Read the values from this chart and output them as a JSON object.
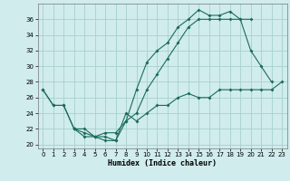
{
  "xlabel": "Humidex (Indice chaleur)",
  "bg_color": "#d0ecec",
  "grid_color": "#a8d0d0",
  "line_color": "#1a6b5a",
  "xlim": [
    -0.5,
    23.5
  ],
  "ylim": [
    19.5,
    38
  ],
  "xticks": [
    0,
    1,
    2,
    3,
    4,
    5,
    6,
    7,
    8,
    9,
    10,
    11,
    12,
    13,
    14,
    15,
    16,
    17,
    18,
    19,
    20,
    21,
    22,
    23
  ],
  "yticks": [
    20,
    22,
    24,
    26,
    28,
    30,
    32,
    34,
    36
  ],
  "line1_x": [
    0,
    1,
    2,
    3,
    4,
    5,
    6,
    7,
    8,
    9,
    10,
    11,
    12,
    13,
    14,
    15,
    16,
    17,
    18,
    19,
    20,
    21,
    22
  ],
  "line1_y": [
    27,
    25,
    25,
    22,
    21,
    21,
    20.5,
    20.5,
    23,
    27,
    30.5,
    32,
    33,
    35,
    36,
    37.2,
    36.5,
    36.5,
    37,
    36,
    32,
    30,
    28
  ],
  "line2_x": [
    0,
    1,
    2,
    3,
    4,
    5,
    6,
    7,
    8,
    9,
    10,
    11,
    12,
    13,
    14,
    15,
    16,
    17,
    18,
    19,
    20
  ],
  "line2_y": [
    27,
    25,
    25,
    22,
    22,
    21,
    21.5,
    21.5,
    23,
    24,
    27,
    29,
    31,
    33,
    35,
    36,
    36,
    36,
    36,
    36,
    36
  ],
  "line3_x": [
    3,
    4,
    5,
    6,
    7,
    8,
    9,
    10,
    11,
    12,
    13,
    14,
    15,
    16,
    17,
    18,
    19,
    20,
    21,
    22,
    23
  ],
  "line3_y": [
    22,
    21.5,
    21,
    21,
    20.5,
    24,
    23,
    24,
    25,
    25,
    26,
    26.5,
    26,
    26,
    27,
    27,
    27,
    27,
    27,
    27,
    28
  ]
}
